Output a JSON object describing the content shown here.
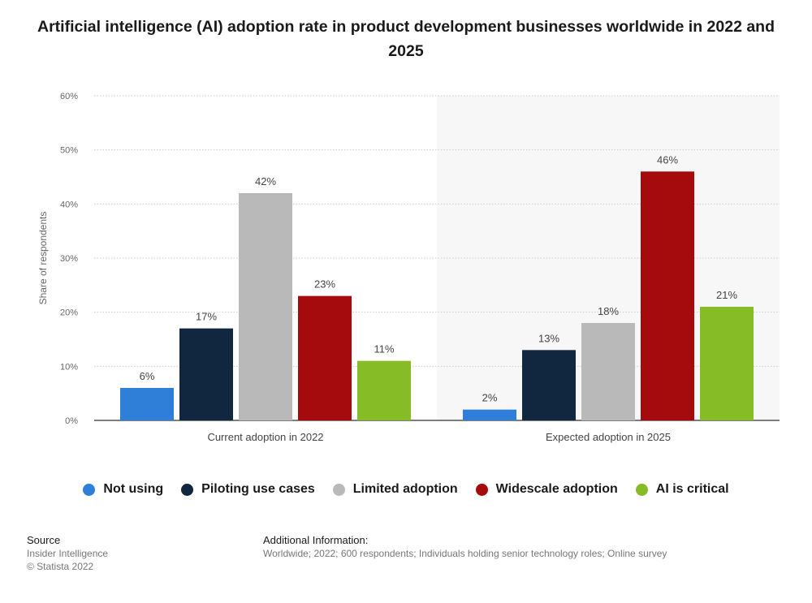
{
  "colors": {
    "not_using": "#2f7ed8",
    "piloting": "#11263f",
    "limited": "#b9b9b9",
    "widescale": "#a50a0d",
    "critical": "#86bc25",
    "grid": "#cccccc",
    "panel": "#f7f7f7",
    "axis": "#333333",
    "label": "#444444",
    "tick": "#666666"
  },
  "legend": [
    {
      "label": "Not using",
      "color": "#2f7ed8",
      "icon": "circle-marker"
    },
    {
      "label": "Piloting use cases",
      "color": "#11263f",
      "icon": "circle-marker"
    },
    {
      "label": "Limited adoption",
      "color": "#b9b9b9",
      "icon": "circle-marker"
    },
    {
      "label": "Widescale adoption",
      "color": "#a50a0d",
      "icon": "circle-marker"
    },
    {
      "label": "AI is critical",
      "color": "#86bc25",
      "icon": "circle-marker"
    }
  ],
  "footer": {
    "source_heading": "Source",
    "source_name": "Insider Intelligence",
    "copyright": "© Statista 2022",
    "info_heading": "Additional Information:",
    "info_text": "Worldwide; 2022; 600 respondents; Individuals holding senior technology roles; Online survey"
  },
  "chart_data": {
    "type": "bar",
    "title": "Artificial intelligence (AI) adoption rate in product development businesses worldwide in 2022 and 2025",
    "xlabel": "",
    "ylabel": "Share of respondents",
    "ylim": [
      0,
      60
    ],
    "yticks": [
      0,
      10,
      20,
      30,
      40,
      50,
      60
    ],
    "ytick_labels": [
      "0%",
      "10%",
      "20%",
      "30%",
      "40%",
      "50%",
      "60%"
    ],
    "value_suffix": "%",
    "grid": true,
    "legend_position": "bottom",
    "categories": [
      "Current adoption in 2022",
      "Expected adoption in 2025"
    ],
    "series": [
      {
        "name": "Not using",
        "color": "#2f7ed8",
        "values": [
          6,
          2
        ]
      },
      {
        "name": "Piloting use cases",
        "color": "#11263f",
        "values": [
          17,
          13
        ]
      },
      {
        "name": "Limited adoption",
        "color": "#b9b9b9",
        "values": [
          42,
          18
        ]
      },
      {
        "name": "Widescale adoption",
        "color": "#a50a0d",
        "values": [
          23,
          46
        ]
      },
      {
        "name": "AI is critical",
        "color": "#86bc25",
        "values": [
          11,
          21
        ]
      }
    ]
  }
}
